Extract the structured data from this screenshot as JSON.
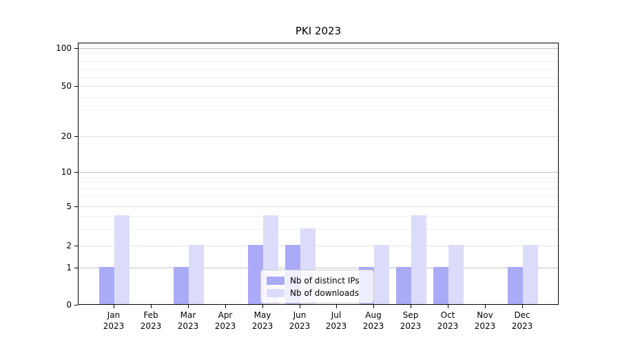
{
  "title": "PKI 2023",
  "chart_data": {
    "type": "bar",
    "title": "PKI 2023",
    "xlabel": "",
    "ylabel": "",
    "yscale": "symlog",
    "ylim": [
      0,
      100
    ],
    "yticks": [
      0,
      1,
      2,
      5,
      10,
      20,
      50,
      100
    ],
    "grid": true,
    "legend_position": "lower center",
    "categories": [
      "Jan 2023",
      "Feb 2023",
      "Mar 2023",
      "Apr 2023",
      "May 2023",
      "Jun 2023",
      "Jul 2023",
      "Aug 2023",
      "Sep 2023",
      "Oct 2023",
      "Nov 2023",
      "Dec 2023"
    ],
    "series": [
      {
        "name": "Nb of distinct IPs",
        "color": "#aaaaf8",
        "values": [
          1,
          0,
          1,
          0,
          2,
          2,
          0,
          1,
          1,
          1,
          0,
          1
        ]
      },
      {
        "name": "Nb of downloads",
        "color": "#dcdcfa",
        "values": [
          4,
          0,
          2,
          0,
          4,
          3,
          0,
          2,
          4,
          2,
          0,
          2
        ]
      }
    ]
  },
  "legend": {
    "items": [
      {
        "label": "Nb of distinct IPs",
        "color": "#aaaaf8"
      },
      {
        "label": "Nb of downloads",
        "color": "#dcdcfa"
      }
    ]
  },
  "colors": {
    "major_grid_pow10": "#c3c3c3",
    "major_grid_other": "#e2e2e2",
    "minor_grid": "#f0f0f0",
    "axis": "#000000",
    "background": "#ffffff"
  }
}
